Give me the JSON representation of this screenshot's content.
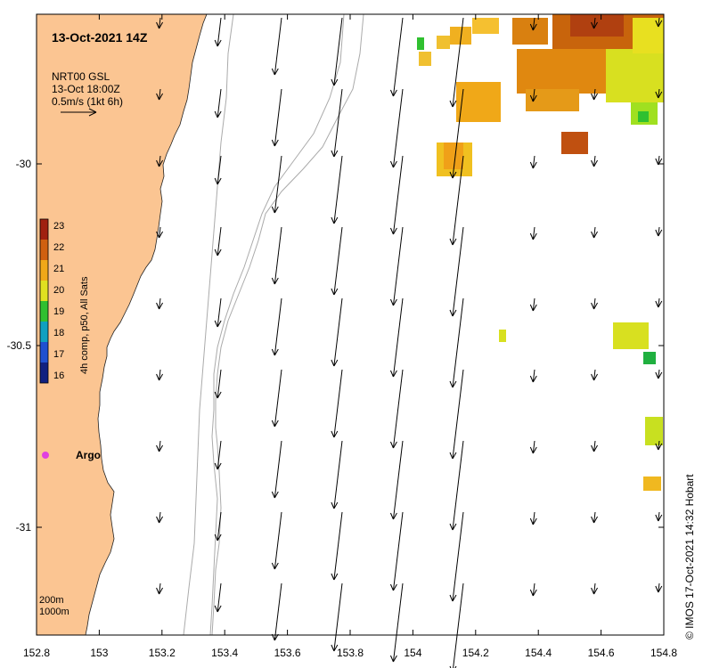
{
  "title": "13-Oct-2021 14Z",
  "arrow_legend": {
    "line1": "NRT00 GSL",
    "line2": "13-Oct 18:00Z",
    "line3": "0.5m/s (1kt 6h)"
  },
  "colorbar": {
    "label": "4h comp, p50, All Sats",
    "ticks": [
      "23",
      "22",
      "21",
      "20",
      "19",
      "18",
      "17",
      "16"
    ]
  },
  "x_ticks": [
    "152.8",
    "153",
    "153.2",
    "153.4",
    "153.6",
    "153.8",
    "154",
    "154.2",
    "154.4",
    "154.6",
    "154.8"
  ],
  "y_ticks": [
    "-30",
    "-30.5",
    "-31"
  ],
  "marker": {
    "label": "Argo"
  },
  "contour_legend": {
    "line1": "200m",
    "line2": "1000m"
  },
  "credit": "© IMOS 17-Oct-2021 14:32 Hobart",
  "colors": {
    "land": "#fbc592",
    "marker": "#e040e0",
    "contour": "#aaaaaa"
  }
}
